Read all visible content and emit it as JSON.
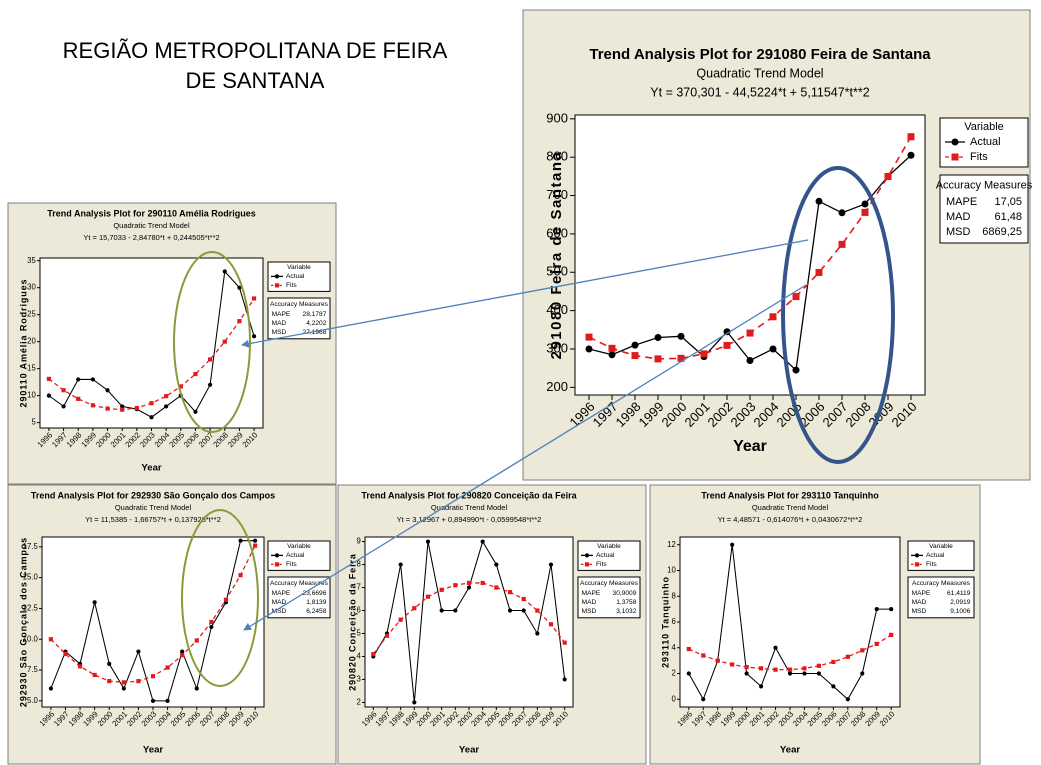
{
  "heading": [
    "REGIÃO METROPOLITANA DE FEIRA",
    "DE SANTANA"
  ],
  "chart_data": [
    {
      "type": "line",
      "title": "Trend Analysis Plot for 291080 Feira de Santana",
      "subtitle": "Quadratic Trend Model",
      "equation": "Yt = 370,301 - 44,5224*t + 5,11547*t**2",
      "x_label": "Year",
      "y_label": "291080 Feira de Santana",
      "categories": [
        "1996",
        "1997",
        "1998",
        "1999",
        "2000",
        "2001",
        "2002",
        "2003",
        "2004",
        "2005",
        "2006",
        "2007",
        "2008",
        "2009",
        "2010"
      ],
      "series": [
        {
          "name": "Actual",
          "color": "#000000",
          "marker": "circle",
          "dashed": false,
          "values": [
            300,
            285,
            310,
            330,
            333,
            280,
            345,
            270,
            300,
            245,
            685,
            655,
            678,
            750,
            805
          ]
        },
        {
          "name": "Fits",
          "color": "#e31a1c",
          "marker": "square",
          "dashed": true,
          "values": [
            330.9,
            301.7,
            282.8,
            274.1,
            275.6,
            287.3,
            309.3,
            341.5,
            384.0,
            436.6,
            499.5,
            572.7,
            656.0,
            749.6,
            853.4
          ]
        }
      ],
      "ylim": [
        180,
        910
      ],
      "yticks": [
        200,
        300,
        400,
        500,
        600,
        700,
        800,
        900
      ],
      "legend": {
        "title": "Variable"
      },
      "accuracy": {
        "title": "Accuracy Measures",
        "rows": [
          [
            "MAPE",
            "17,05"
          ],
          [
            "MAD",
            "61,48"
          ],
          [
            "MSD",
            "6869,25"
          ]
        ]
      }
    },
    {
      "type": "line",
      "title": "Trend Analysis Plot for 290110 Amélia Rodrigues",
      "subtitle": "Quadratic Trend Model",
      "equation": "Yt = 15,7033 - 2,84780*t + 0,244505*t**2",
      "x_label": "Year",
      "y_label": "290110 Amélia Rodrigues",
      "categories": [
        "1996",
        "1997",
        "1998",
        "1999",
        "2000",
        "2001",
        "2002",
        "2003",
        "2004",
        "2005",
        "2006",
        "2007",
        "2008",
        "2009",
        "2010"
      ],
      "series": [
        {
          "name": "Actual",
          "color": "#000000",
          "marker": "circle",
          "dashed": false,
          "values": [
            10,
            8,
            13,
            13,
            11,
            8,
            7.5,
            6,
            8,
            10,
            7,
            12,
            33,
            30,
            21
          ]
        },
        {
          "name": "Fits",
          "color": "#e31a1c",
          "marker": "square",
          "dashed": true,
          "values": [
            13.1,
            11.0,
            9.4,
            8.2,
            7.6,
            7.4,
            7.7,
            8.6,
            9.9,
            11.7,
            14.0,
            16.7,
            20.0,
            23.8,
            28.0
          ]
        }
      ],
      "ylim": [
        4,
        35.5
      ],
      "yticks": [
        5,
        10,
        15,
        20,
        25,
        30,
        35
      ],
      "legend": {
        "title": "Variable"
      },
      "accuracy": {
        "title": "Accuracy Measures",
        "rows": [
          [
            "MAPE",
            "28,1787"
          ],
          [
            "MAD",
            "4,2202"
          ],
          [
            "MSD",
            "27,1968"
          ]
        ]
      }
    },
    {
      "type": "line",
      "title": "Trend Analysis Plot for 292930 São Gonçalo dos Campos",
      "subtitle": "Quadratic Trend Model",
      "equation": "Yt = 11,5385 - 1,66757*t + 0,137928*t**2",
      "x_label": "Year",
      "y_label": "292930 São Gonçalo dos Campos",
      "categories": [
        "1996",
        "1997",
        "1998",
        "1999",
        "2000",
        "2001",
        "2002",
        "2003",
        "2004",
        "2005",
        "2006",
        "2007",
        "2008",
        "2009",
        "2010"
      ],
      "series": [
        {
          "name": "Actual",
          "color": "#000000",
          "marker": "circle",
          "dashed": false,
          "values": [
            6,
            9,
            8,
            13,
            8,
            6,
            9,
            5,
            5,
            9,
            6,
            11,
            13,
            18,
            18
          ]
        },
        {
          "name": "Fits",
          "color": "#e31a1c",
          "marker": "square",
          "dashed": true,
          "values": [
            10.0,
            8.8,
            7.8,
            7.1,
            6.6,
            6.5,
            6.6,
            7.0,
            7.7,
            8.7,
            9.9,
            11.4,
            13.2,
            15.2,
            17.6
          ]
        }
      ],
      "ylim": [
        4.5,
        18.3
      ],
      "yticks": [
        {
          "value": 5,
          "label": "5.0"
        },
        {
          "value": 7.5,
          "label": "7.5"
        },
        {
          "value": 10,
          "label": "10.0"
        },
        {
          "value": 12.5,
          "label": "12.5"
        },
        {
          "value": 15,
          "label": "15.0"
        },
        {
          "value": 17.5,
          "label": "17.5"
        }
      ],
      "legend": {
        "title": "Variable"
      },
      "accuracy": {
        "title": "Accuracy Measures",
        "rows": [
          [
            "MAPE",
            "23,6696"
          ],
          [
            "MAD",
            "1,8139"
          ],
          [
            "MSD",
            "6,2458"
          ]
        ]
      }
    },
    {
      "type": "line",
      "title": "Trend Analysis Plot for 290820 Conceição da Feira",
      "subtitle": "Quadratic Trend Model",
      "equation": "Yt = 3,12967 + 0,894990*t - 0,0599548*t**2",
      "x_label": "Year",
      "y_label": "290820 Conceição da Feira",
      "categories": [
        "1996",
        "1997",
        "1998",
        "1999",
        "2000",
        "2001",
        "2002",
        "2003",
        "2004",
        "2005",
        "2006",
        "2007",
        "2008",
        "2009",
        "2010"
      ],
      "series": [
        {
          "name": "Actual",
          "color": "#000000",
          "marker": "circle",
          "dashed": false,
          "values": [
            4,
            5,
            8,
            2,
            9,
            6,
            6,
            7,
            9,
            8,
            6,
            6,
            5,
            8,
            3
          ]
        },
        {
          "name": "Fits",
          "color": "#e31a1c",
          "marker": "square",
          "dashed": true,
          "values": [
            4.1,
            4.9,
            5.6,
            6.1,
            6.6,
            6.9,
            7.1,
            7.2,
            7.2,
            7.0,
            6.8,
            6.5,
            6.0,
            5.4,
            4.6
          ]
        }
      ],
      "ylim": [
        1.8,
        9.2
      ],
      "yticks": [
        2,
        3,
        4,
        5,
        6,
        7,
        8,
        9
      ],
      "legend": {
        "title": "Variable"
      },
      "accuracy": {
        "title": "Accuracy Measures",
        "rows": [
          [
            "MAPE",
            "30,9009"
          ],
          [
            "MAD",
            "1,3758"
          ],
          [
            "MSD",
            "3,1032"
          ]
        ]
      }
    },
    {
      "type": "line",
      "title": "Trend Analysis Plot for 293110 Tanquinho",
      "subtitle": "Quadratic Trend Model",
      "equation": "Yt = 4,48571 - 0,614076*t + 0,0430672*t**2",
      "x_label": "Year",
      "y_label": "293110 Tanquinho",
      "categories": [
        "1996",
        "1997",
        "1998",
        "1999",
        "2000",
        "2001",
        "2002",
        "2003",
        "2004",
        "2005",
        "2006",
        "2007",
        "2008",
        "2009",
        "2010"
      ],
      "series": [
        {
          "name": "Actual",
          "color": "#000000",
          "marker": "circle",
          "dashed": false,
          "values": [
            2,
            0,
            3,
            12,
            2,
            1,
            4,
            2,
            2,
            2,
            1,
            0,
            2,
            7,
            7
          ]
        },
        {
          "name": "Fits",
          "color": "#e31a1c",
          "marker": "square",
          "dashed": true,
          "values": [
            3.9,
            3.4,
            3.0,
            2.7,
            2.5,
            2.4,
            2.3,
            2.3,
            2.4,
            2.6,
            2.9,
            3.3,
            3.8,
            4.3,
            5.0
          ]
        }
      ],
      "ylim": [
        -0.6,
        12.6
      ],
      "yticks": [
        0,
        2,
        4,
        6,
        8,
        10,
        12
      ],
      "legend": {
        "title": "Variable"
      },
      "accuracy": {
        "title": "Accuracy Measures",
        "rows": [
          [
            "MAPE",
            "61,4119"
          ],
          [
            "MAD",
            "2,0919"
          ],
          [
            "MSD",
            "9,1006"
          ]
        ]
      }
    }
  ]
}
